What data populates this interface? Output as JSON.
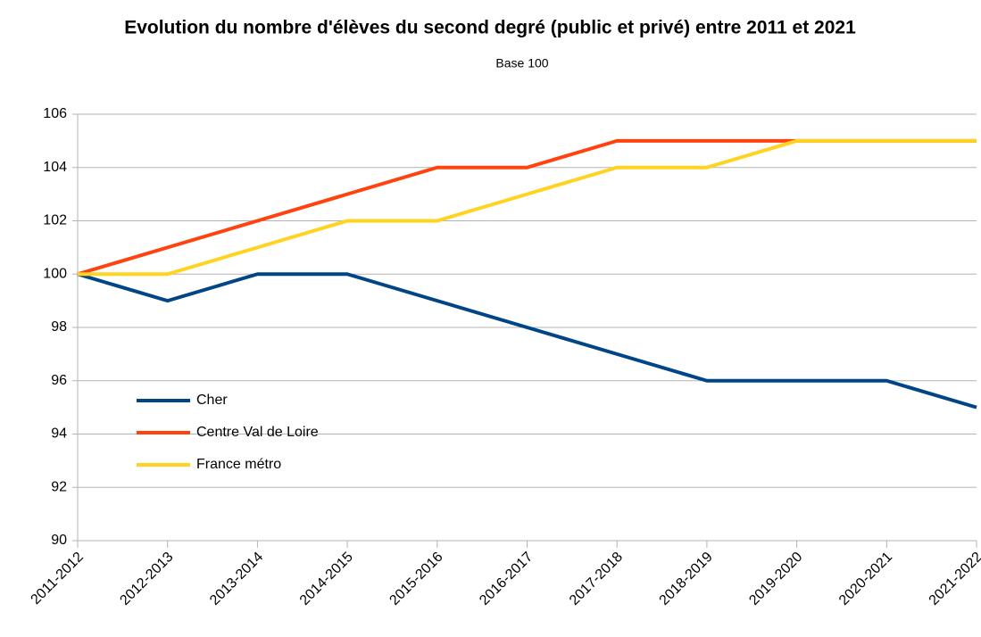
{
  "chart_data": {
    "type": "line",
    "title": "Evolution du nombre d'élèves du second degré (public et privé) entre 2011 et 2021",
    "subtitle": "Base 100",
    "categories": [
      "2011-2012",
      "2012-2013",
      "2013-2014",
      "2014-2015",
      "2015-2016",
      "2016-2017",
      "2017-2018",
      "2018-2019",
      "2019-2020",
      "2020-2021",
      "2021-2022"
    ],
    "series": [
      {
        "name": "Cher",
        "color": "#004586",
        "values": [
          100,
          99,
          100,
          100,
          99,
          98,
          97,
          96,
          96,
          96,
          95
        ]
      },
      {
        "name": "Centre Val de Loire",
        "color": "#ff420e",
        "values": [
          100,
          101,
          102,
          103,
          104,
          104,
          105,
          105,
          105,
          105,
          105
        ]
      },
      {
        "name": "France métro",
        "color": "#ffd320",
        "values": [
          100,
          100,
          101,
          102,
          102,
          103,
          104,
          104,
          105,
          105,
          105
        ]
      }
    ],
    "ylim": [
      90,
      106
    ],
    "yticks": [
      90,
      92,
      94,
      96,
      98,
      100,
      102,
      104,
      106
    ],
    "grid": true,
    "legend": "left"
  }
}
